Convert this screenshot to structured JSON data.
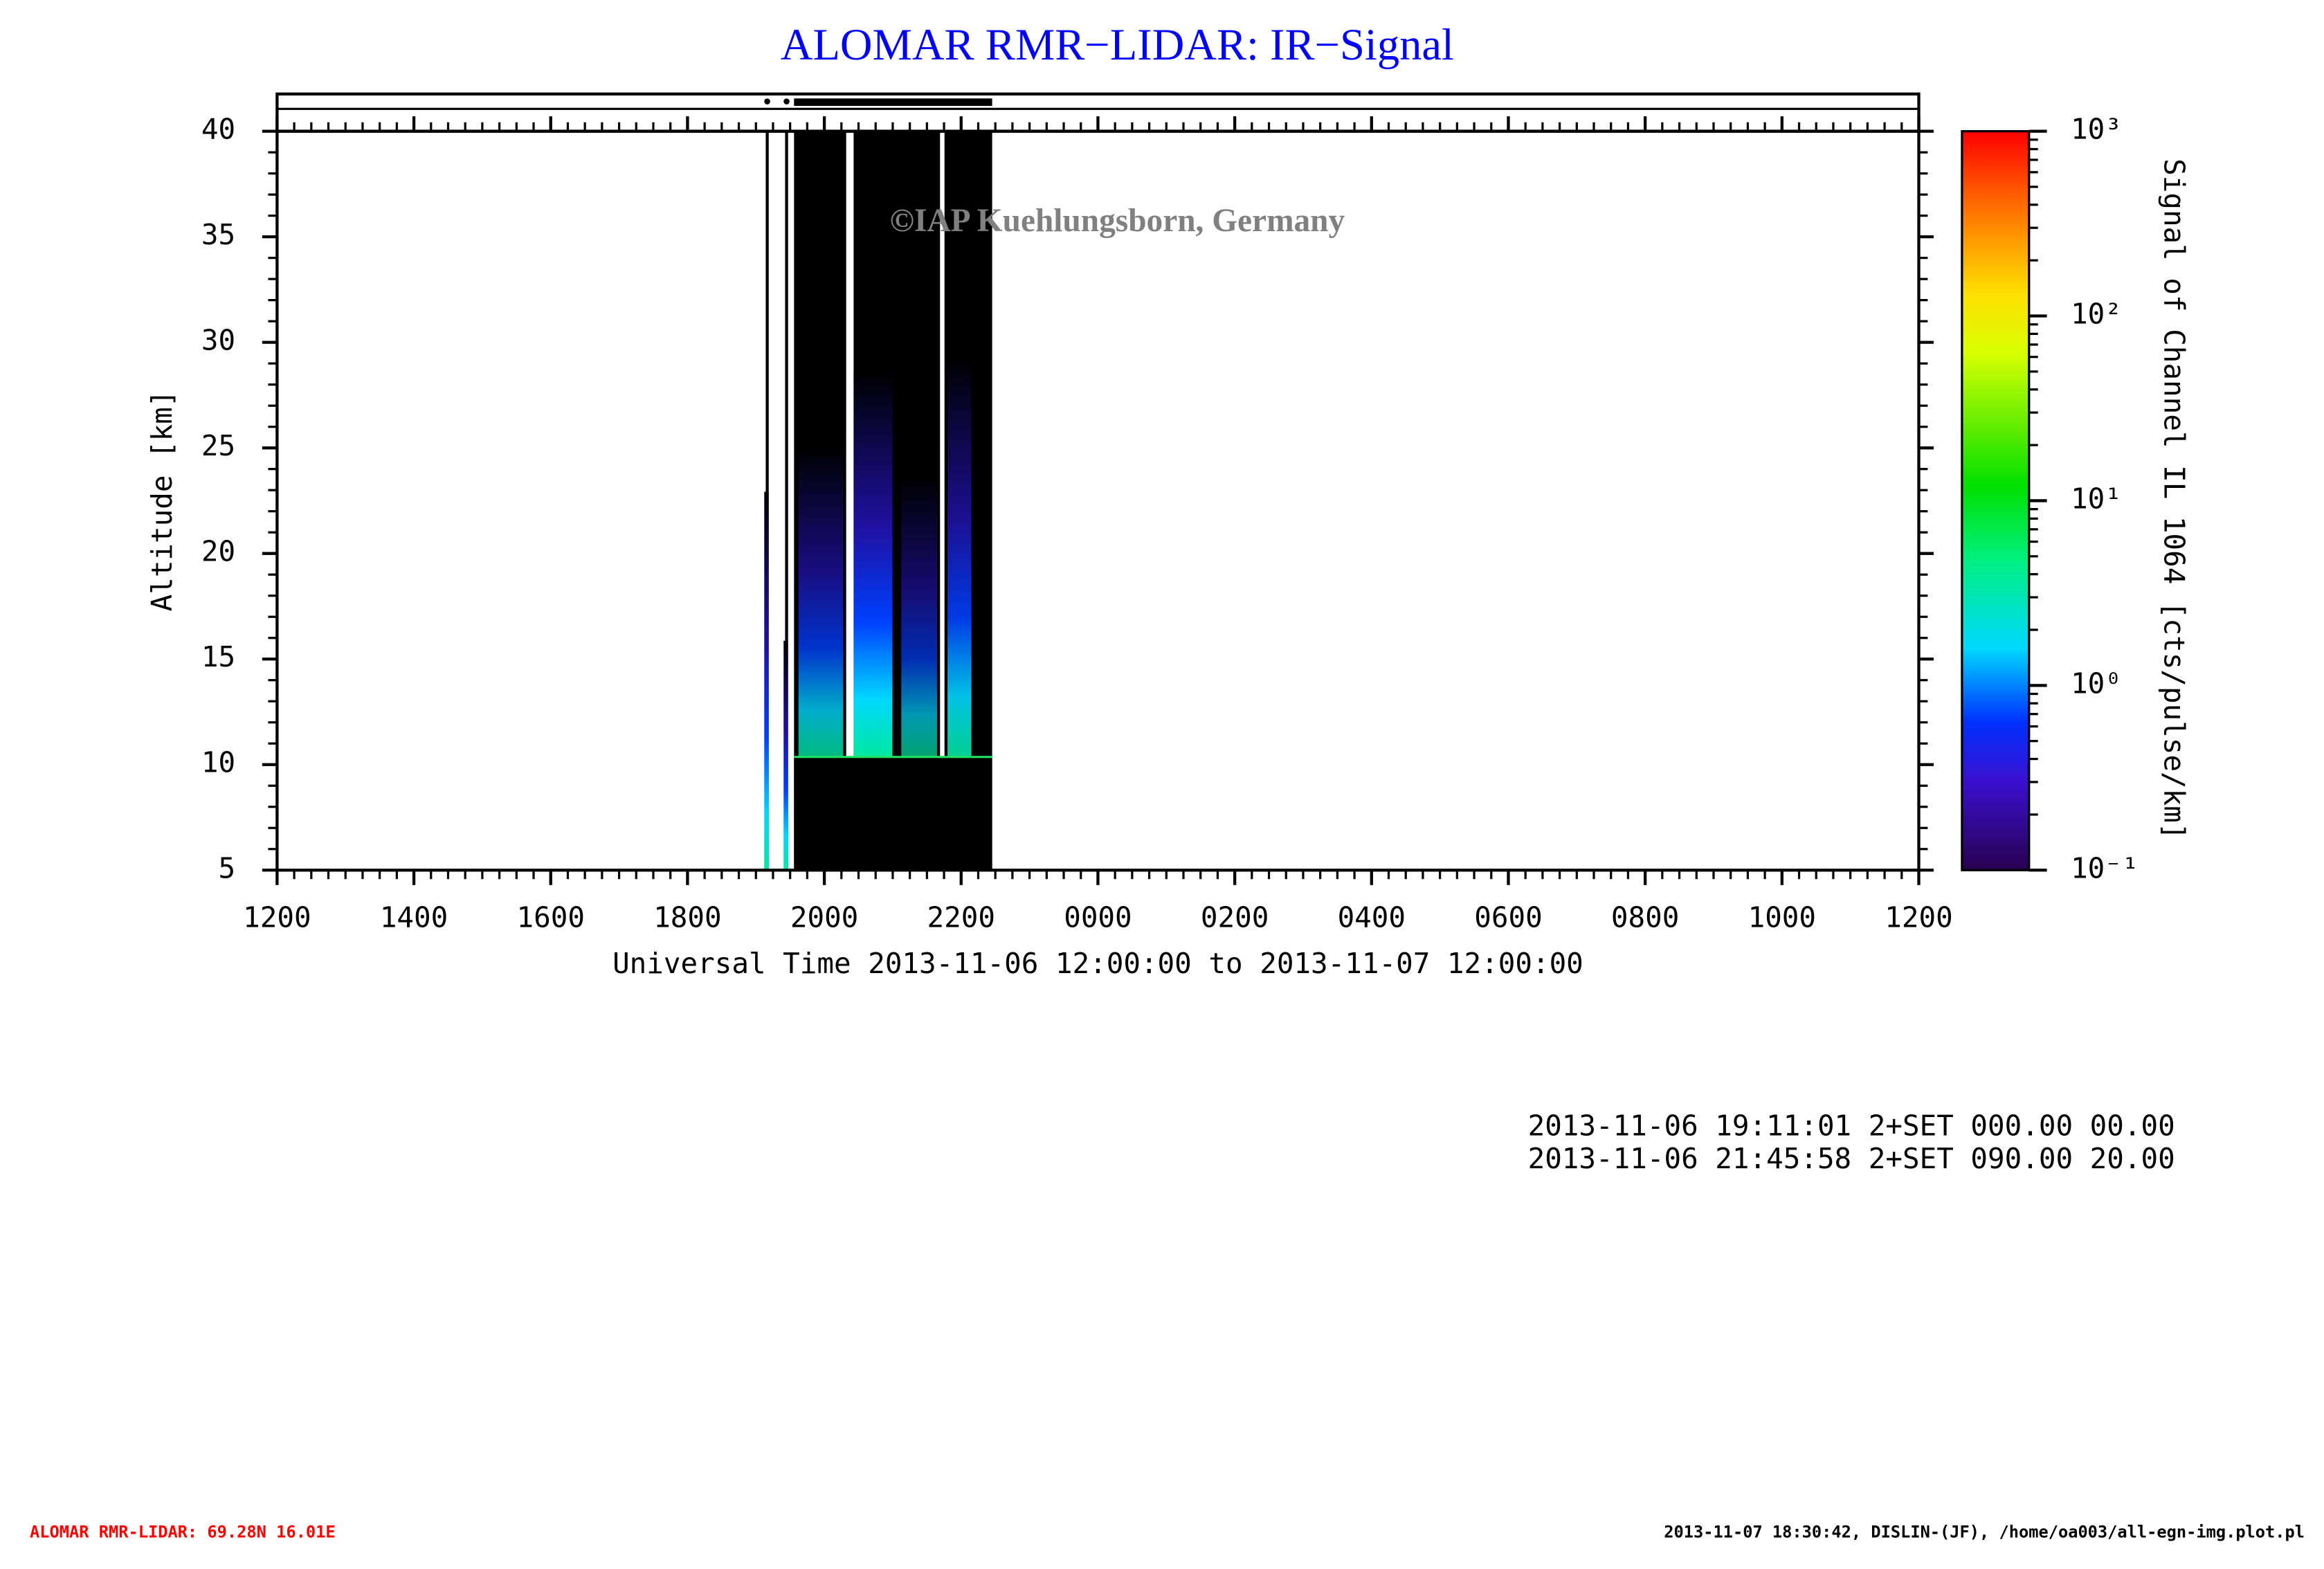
{
  "chart_data": {
    "type": "heatmap",
    "title": "ALOMAR RMR−LIDAR: IR−Signal",
    "watermark": "©IAP Kuehlungsborn, Germany",
    "xlabel": "Universal Time 2013-11-06 12:00:00 to 2013-11-07 12:00:00",
    "ylabel": "Altitude [km]",
    "colorbar_label": "Signal of Channel IL 1064 [cts/pulse/km]",
    "xlim": [
      12,
      36
    ],
    "xticks": [
      {
        "value": 12,
        "label": "1200"
      },
      {
        "value": 14,
        "label": "1400"
      },
      {
        "value": 16,
        "label": "1600"
      },
      {
        "value": 18,
        "label": "1800"
      },
      {
        "value": 20,
        "label": "2000"
      },
      {
        "value": 22,
        "label": "2200"
      },
      {
        "value": 24,
        "label": "0000"
      },
      {
        "value": 26,
        "label": "0200"
      },
      {
        "value": 28,
        "label": "0400"
      },
      {
        "value": 30,
        "label": "0600"
      },
      {
        "value": 32,
        "label": "0800"
      },
      {
        "value": 34,
        "label": "1000"
      },
      {
        "value": 36,
        "label": "1200"
      }
    ],
    "ylim": [
      5,
      40
    ],
    "yticks": [
      5,
      10,
      15,
      20,
      25,
      30,
      35,
      40
    ],
    "clim": [
      0.1,
      1000
    ],
    "clog": true,
    "cticks": [
      {
        "value": 0.1,
        "label": "10⁻¹"
      },
      {
        "value": 1,
        "label": "10⁰"
      },
      {
        "value": 10,
        "label": "10¹"
      },
      {
        "value": 100,
        "label": "10²"
      },
      {
        "value": 1000,
        "label": "10³"
      }
    ],
    "info_lines": [
      "2013-11-06 19:11:01 2+SET 000.00 00.00",
      "2013-11-06 21:45:58 2+SET 090.00 20.00"
    ],
    "footer_left": "ALOMAR RMR-LIDAR: 69.28N 16.01E",
    "footer_right": "2013-11-07 18:30:42, DISLIN-(JF), /home/oa003/all-egn-img.plot.pl"
  }
}
